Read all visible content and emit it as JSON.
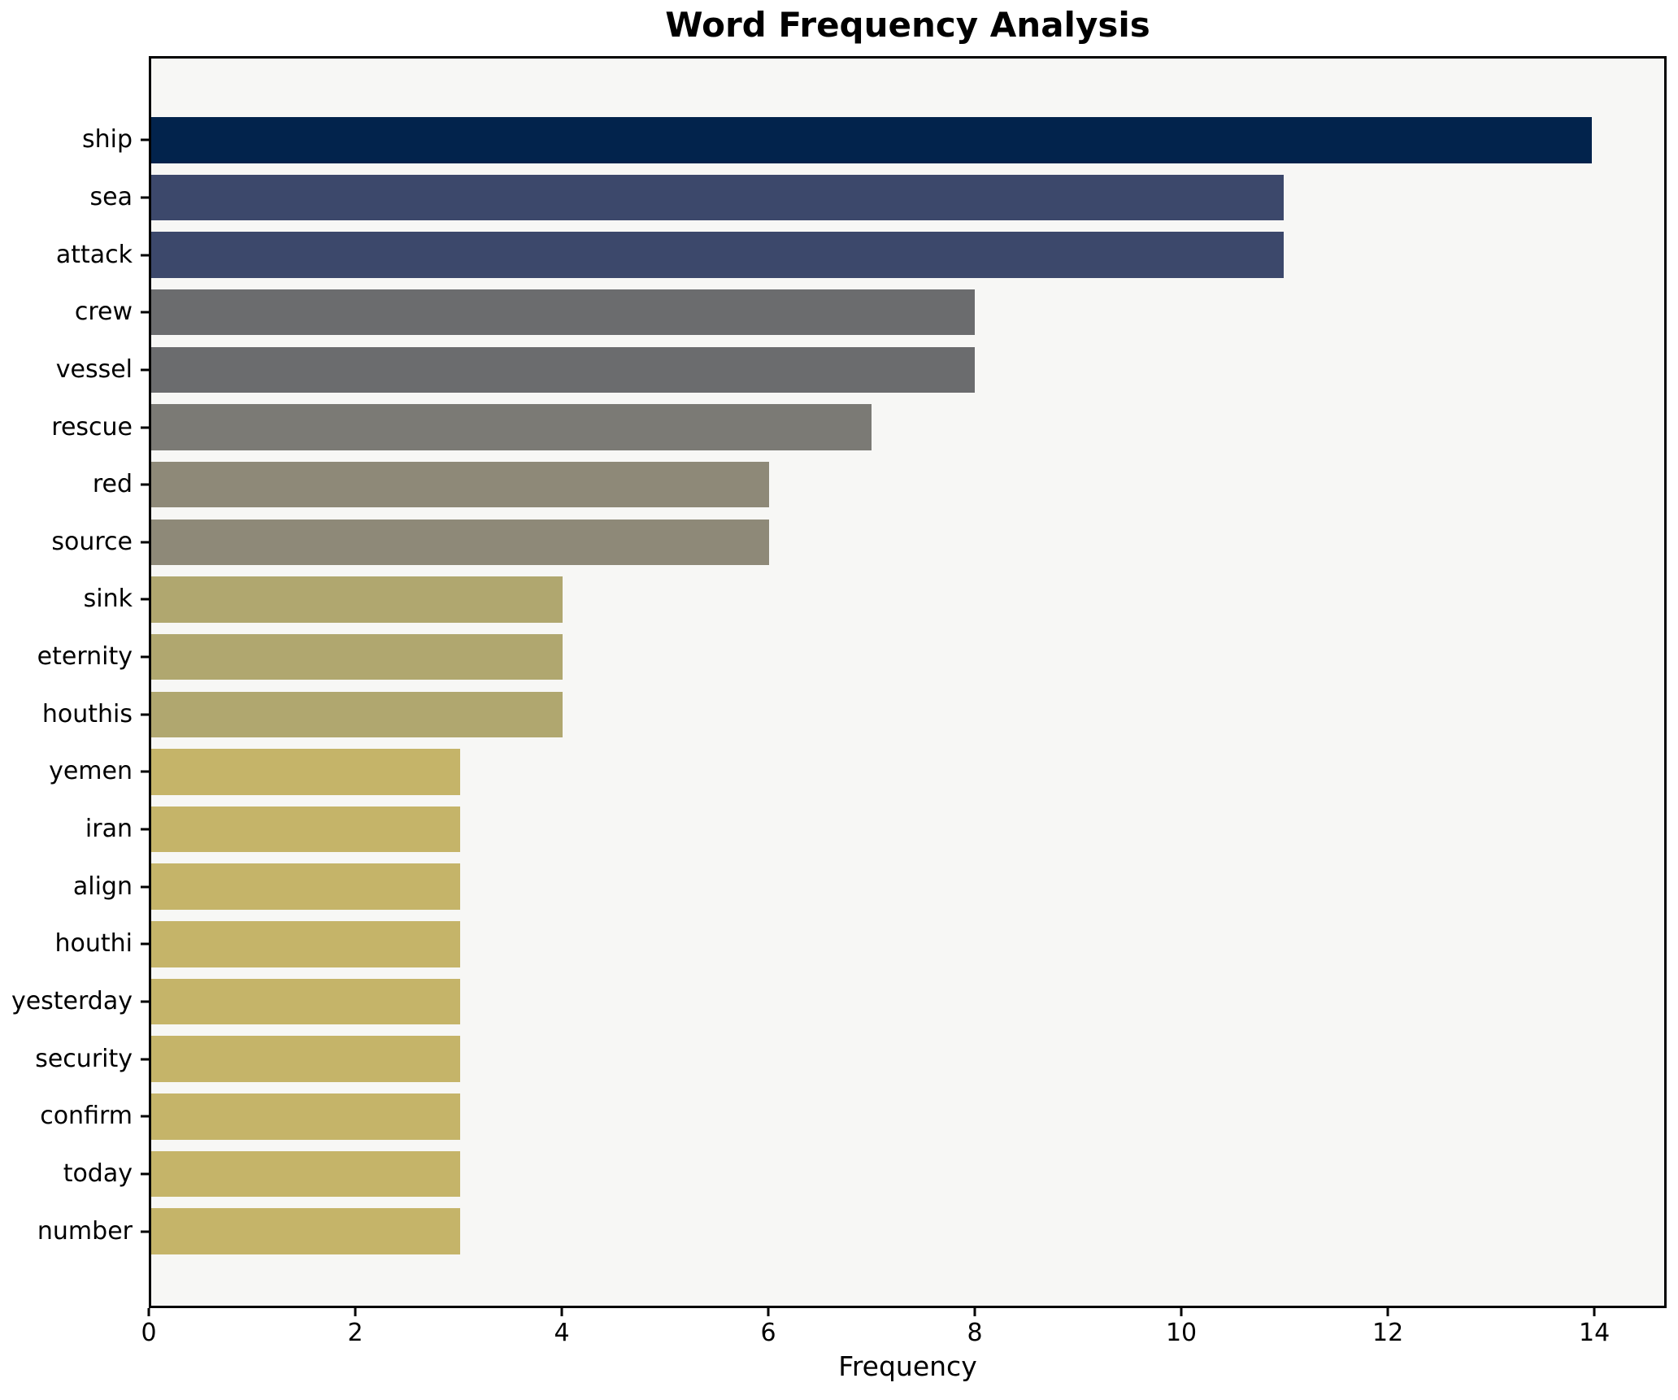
{
  "title": "Word Frequency Analysis",
  "chart_data": {
    "type": "bar",
    "orientation": "horizontal",
    "title": "Word Frequency Analysis",
    "xlabel": "Frequency",
    "ylabel": "",
    "categories": [
      "ship",
      "sea",
      "attack",
      "crew",
      "vessel",
      "rescue",
      "red",
      "source",
      "sink",
      "eternity",
      "houthis",
      "yemen",
      "iran",
      "align",
      "houthi",
      "yesterday",
      "security",
      "confirm",
      "today",
      "number"
    ],
    "values": [
      14,
      11,
      11,
      8,
      8,
      7,
      6,
      6,
      4,
      4,
      4,
      3,
      3,
      3,
      3,
      3,
      3,
      3,
      3,
      3
    ],
    "bar_colors": [
      "#02234c",
      "#3c486b",
      "#3c486b",
      "#6b6c6e",
      "#6b6c6e",
      "#7b7a75",
      "#8e8978",
      "#8e8978",
      "#b0a76f",
      "#b0a76f",
      "#b0a76f",
      "#c5b469",
      "#c5b469",
      "#c5b469",
      "#c5b469",
      "#c5b469",
      "#c5b469",
      "#c5b469",
      "#c5b469",
      "#c5b469"
    ],
    "xlim": [
      0,
      14.7
    ],
    "xticks": [
      0,
      2,
      4,
      6,
      8,
      10,
      12,
      14
    ],
    "grid": false,
    "legend": null,
    "plot_bg": "#f7f7f5",
    "figure_bg": "#ffffff",
    "spine_color": "#000000"
  }
}
